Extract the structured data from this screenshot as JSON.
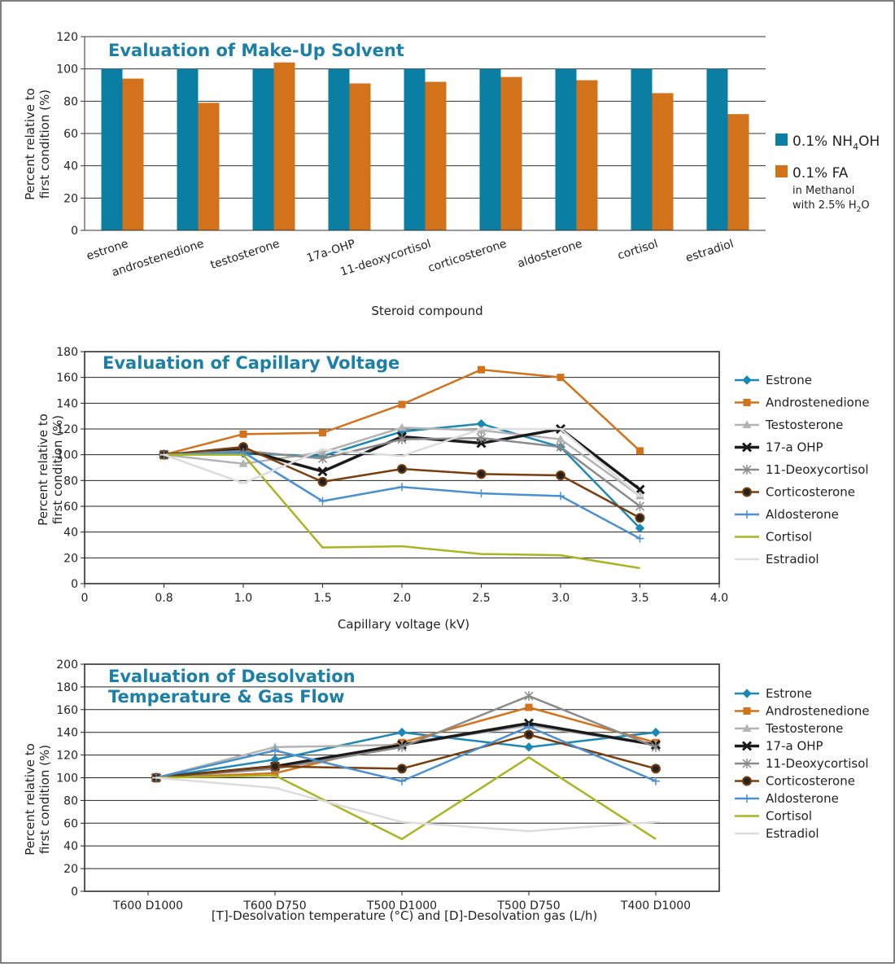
{
  "chart_data": [
    {
      "type": "bar",
      "title": "Evaluation of Make-Up Solvent",
      "xlabel": "Steroid compound",
      "ylabel_lines": [
        "Percent relative to",
        "first condition (%)"
      ],
      "ylim": [
        0,
        120
      ],
      "yticks": [
        0,
        20,
        40,
        60,
        80,
        100,
        120
      ],
      "categories": [
        "estrone",
        "androstenedione",
        "testosterone",
        "17a-OHP",
        "11-deoxycortisol",
        "corticosterone",
        "aldosterone",
        "cortisol",
        "estradiol"
      ],
      "series": [
        {
          "name": "0.1% NH4OH",
          "legend_main": "0.1% NH",
          "legend_sub": "4",
          "legend_after": "OH",
          "color": "#0a7fa3",
          "values": [
            100,
            100,
            100,
            100,
            100,
            100,
            100,
            100,
            100
          ]
        },
        {
          "name": "0.1% FA",
          "legend_main": "0.1% FA",
          "legend_note1": "in Methanol",
          "legend_note2_pre": "with 2.5% H",
          "legend_note2_sub": "2",
          "legend_note2_post": "O",
          "color": "#d2721b",
          "values": [
            94,
            79,
            104,
            91,
            92,
            95,
            93,
            85,
            72
          ]
        }
      ]
    },
    {
      "type": "line",
      "title": "Evaluation of Capillary Voltage",
      "xlabel": "Capillary voltage (kV)",
      "ylabel_lines": [
        "Percent relative to",
        "first condition (%)"
      ],
      "ylim": [
        0,
        180
      ],
      "yticks": [
        0,
        20,
        40,
        60,
        80,
        100,
        120,
        140,
        160,
        180
      ],
      "xticks": [
        "0",
        "0.8",
        "1.0",
        "1.5",
        "2.0",
        "2.5",
        "3.0",
        "3.5",
        "4.0"
      ],
      "x": [
        "0.8",
        "1.0",
        "1.5",
        "2.0",
        "2.5",
        "3.0",
        "3.5"
      ],
      "series": [
        {
          "name": "Estrone",
          "color": "#1c88b5",
          "marker": "diamond",
          "values": [
            100,
            101,
            99,
            118,
            124,
            106,
            43
          ]
        },
        {
          "name": "Androstenedione",
          "color": "#d2721b",
          "marker": "square",
          "values": [
            100,
            116,
            117,
            139,
            166,
            160,
            103
          ]
        },
        {
          "name": "Testosterone",
          "color": "#b3b3b3",
          "marker": "triangle",
          "values": [
            100,
            93,
            102,
            121,
            119,
            112,
            68
          ]
        },
        {
          "name": "17-a OHP",
          "color": "#1a1a1a",
          "marker": "x",
          "values": [
            100,
            104,
            87,
            114,
            109,
            120,
            73
          ]
        },
        {
          "name": "11-Deoxycortisol",
          "color": "#8a8a8a",
          "marker": "star",
          "values": [
            100,
            103,
            97,
            112,
            113,
            106,
            60
          ]
        },
        {
          "name": "Corticosterone",
          "color": "#7a3e0c",
          "marker": "circle",
          "values": [
            100,
            106,
            79,
            89,
            85,
            84,
            51
          ]
        },
        {
          "name": "Aldosterone",
          "color": "#4a8fd0",
          "marker": "plus",
          "values": [
            100,
            102,
            64,
            75,
            70,
            68,
            35
          ]
        },
        {
          "name": "Cortisol",
          "color": "#a8b522",
          "marker": "none",
          "values": [
            100,
            100,
            28,
            29,
            23,
            22,
            12
          ]
        },
        {
          "name": "Estradiol",
          "color": "#dcdcdc",
          "marker": "dash",
          "values": [
            100,
            78,
            104,
            99,
            120,
            120,
            68
          ]
        }
      ]
    },
    {
      "type": "line",
      "title_lines": [
        "Evaluation of Desolvation",
        "Temperature & Gas Flow"
      ],
      "xlabel": "[T]-Desolvation temperature (°C) and [D]-Desolvation gas (L/h)",
      "ylabel_lines": [
        "Percent relative to",
        "first condition (%)"
      ],
      "ylim": [
        0,
        200
      ],
      "yticks": [
        0,
        20,
        40,
        60,
        80,
        100,
        120,
        140,
        160,
        180,
        200
      ],
      "categories": [
        "T600 D1000",
        "T600 D750",
        "T500 D1000",
        "T500 D750",
        "T400 D1000"
      ],
      "series": [
        {
          "name": "Estrone",
          "color": "#1c88b5",
          "marker": "diamond",
          "values": [
            100,
            116,
            140,
            127,
            140
          ]
        },
        {
          "name": "Androstenedione",
          "color": "#d2721b",
          "marker": "square",
          "values": [
            100,
            104,
            131,
            162,
            131
          ]
        },
        {
          "name": "Testosterone",
          "color": "#b3b3b3",
          "marker": "triangle",
          "values": [
            100,
            127,
            129,
            146,
            129
          ]
        },
        {
          "name": "17-a OHP",
          "color": "#1a1a1a",
          "marker": "x",
          "values": [
            100,
            110,
            129,
            148,
            129
          ]
        },
        {
          "name": "11-Deoxycortisol",
          "color": "#8a8a8a",
          "marker": "star",
          "values": [
            100,
            108,
            127,
            172,
            127
          ]
        },
        {
          "name": "Corticosterone",
          "color": "#7a3e0c",
          "marker": "circle",
          "values": [
            100,
            110,
            108,
            138,
            108
          ]
        },
        {
          "name": "Aldosterone",
          "color": "#4a8fd0",
          "marker": "plus",
          "values": [
            100,
            124,
            97,
            145,
            97
          ]
        },
        {
          "name": "Cortisol",
          "color": "#a8b522",
          "marker": "none",
          "values": [
            100,
            102,
            46,
            118,
            46
          ]
        },
        {
          "name": "Estradiol",
          "color": "#dcdcdc",
          "marker": "dash",
          "values": [
            100,
            91,
            61,
            53,
            61
          ]
        }
      ]
    }
  ]
}
